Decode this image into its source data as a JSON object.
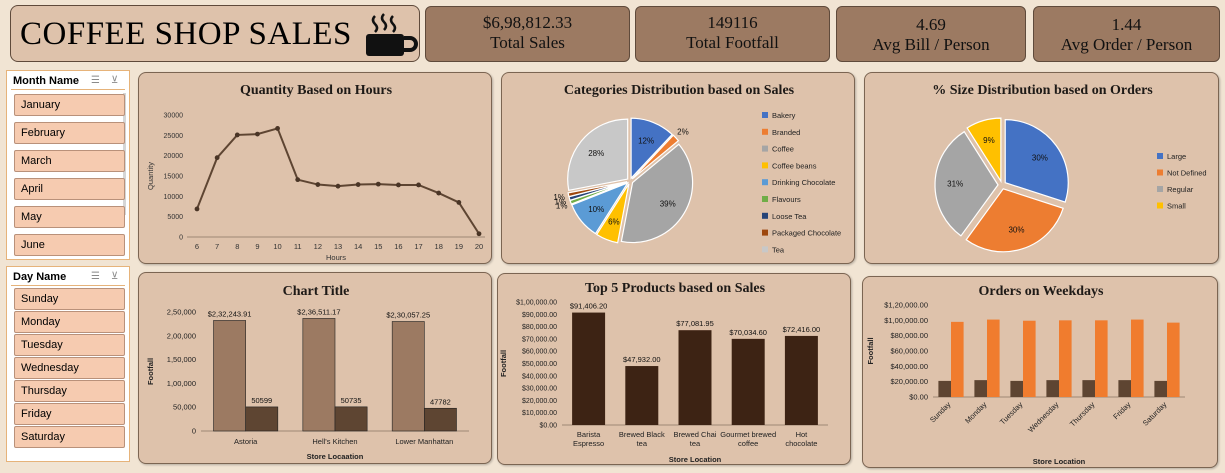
{
  "header": {
    "title": "COFFEE SHOP SALES",
    "icon": "coffee-cup-icon"
  },
  "kpis": [
    {
      "value": "$6,98,812.33",
      "label": "Total Sales"
    },
    {
      "value": "149116",
      "label": "Total Footfall"
    },
    {
      "value": "4.69",
      "label": "Avg Bill / Person"
    },
    {
      "value": "1.44",
      "label": "Avg Order / Person"
    }
  ],
  "slicers": {
    "month": {
      "title": "Month Name",
      "items": [
        "January",
        "February",
        "March",
        "April",
        "May",
        "June"
      ]
    },
    "day": {
      "title": "Day Name",
      "items": [
        "Sunday",
        "Monday",
        "Tuesday",
        "Wednesday",
        "Thursday",
        "Friday",
        "Saturday"
      ]
    }
  },
  "colors": {
    "accent_brown": "#9c7a62",
    "panel": "#dec2ab",
    "dark_brown": "#3d2314",
    "orange": "#f07c2e"
  },
  "chart_data": [
    {
      "type": "line",
      "title": "Quantity Based on Hours",
      "xlabel": "Hours",
      "ylabel": "Quantity",
      "x": [
        6,
        7,
        8,
        9,
        10,
        11,
        12,
        13,
        14,
        15,
        16,
        17,
        18,
        19,
        20
      ],
      "values": [
        6900,
        19500,
        25100,
        25300,
        26700,
        14100,
        12900,
        12500,
        12900,
        13000,
        12800,
        12800,
        10800,
        8500,
        800
      ],
      "ylim": [
        0,
        30000
      ],
      "yticks": [
        "0",
        "5000",
        "10000",
        "15000",
        "20000",
        "25000",
        "30000"
      ]
    },
    {
      "type": "pie",
      "title": "Categories Distribution based on Sales",
      "labels": [
        "Bakery",
        "Branded",
        "Coffee",
        "Coffee beans",
        "Drinking Chocolate",
        "Flavours",
        "Loose Tea",
        "Packaged Chocolate",
        "Tea"
      ],
      "values": [
        12,
        2,
        39,
        6,
        10,
        1,
        1,
        1,
        28
      ],
      "data_labels": [
        "12%",
        "2%",
        "39%",
        "6%",
        "10%",
        "1%",
        "1%",
        "1%",
        "28%"
      ],
      "colors": [
        "#4472c4",
        "#ed7d31",
        "#a5a5a5",
        "#ffc000",
        "#5b9bd5",
        "#70ad47",
        "#264478",
        "#9e480e",
        "#c8c8c8"
      ],
      "legend": "right"
    },
    {
      "type": "pie",
      "title": "% Size Distribution based on Orders",
      "labels": [
        "Large",
        "Not Defined",
        "Regular",
        "Small"
      ],
      "values": [
        30,
        30,
        31,
        9
      ],
      "data_labels": [
        "30%",
        "30%",
        "31%",
        "9%"
      ],
      "colors": [
        "#4472c4",
        "#ed7d31",
        "#a5a5a5",
        "#ffc000"
      ],
      "legend": "right"
    },
    {
      "type": "bar",
      "title": "Chart Title",
      "xlabel": "Store Locaation",
      "ylabel": "Footfall",
      "categories": [
        "Astoria",
        "Hell's Kitchen",
        "Lower Manhattan"
      ],
      "series": [
        {
          "values": [
            232243.91,
            236511.17,
            230057.25
          ],
          "labels": [
            "$2,32,243.91",
            "$2,36,511.17",
            "$2,30,057.25"
          ],
          "color": "#9c7a62"
        },
        {
          "values": [
            50599,
            50735,
            47782
          ],
          "labels": [
            "50599",
            "50735",
            "47782"
          ],
          "color": "#5e4532"
        }
      ],
      "ylim": [
        0,
        250000
      ],
      "yticks": [
        "0",
        "50,000",
        "1,00,000",
        "1,50,000",
        "2,00,000",
        "2,50,000"
      ]
    },
    {
      "type": "bar",
      "title": "Top 5 Products based on Sales",
      "xlabel": "Store Location",
      "ylabel": "Footfall",
      "categories": [
        "Barista Espresso",
        "Brewed Black tea",
        "Brewed Chai tea",
        "Gourmet brewed coffee",
        "Hot chocolate"
      ],
      "values": [
        91406.2,
        47932.0,
        77081.95,
        70034.6,
        72416.0
      ],
      "data_labels": [
        "$91,406.20",
        "$47,932.00",
        "$77,081.95",
        "$70,034.60",
        "$72,416.00"
      ],
      "ylim": [
        0,
        100000
      ],
      "yticks": [
        "$0.00",
        "$10,000.00",
        "$20,000.00",
        "$30,000.00",
        "$40,000.00",
        "$50,000.00",
        "$60,000.00",
        "$70,000.00",
        "$80,000.00",
        "$90,000.00",
        "$1,00,000.00"
      ]
    },
    {
      "type": "bar",
      "title": "Orders on Weekdays",
      "xlabel": "Store Location",
      "ylabel": "Footfall",
      "categories": [
        "Sunday",
        "Monday",
        "Tuesday",
        "Wednesday",
        "Thursday",
        "Friday",
        "Saturday"
      ],
      "series": [
        {
          "values": [
            21000,
            22000,
            21000,
            22000,
            22000,
            22000,
            21000
          ],
          "color": "#5e4532"
        },
        {
          "values": [
            98000,
            101000,
            99500,
            100000,
            100000,
            101000,
            97000
          ],
          "color": "#f07c2e"
        }
      ],
      "ylim": [
        0,
        120000
      ],
      "yticks": [
        "$0.00",
        "$20,000.00",
        "$40,000.00",
        "$60,000.00",
        "$80,000.00",
        "$1,00,000.00",
        "$1,20,000.00"
      ]
    }
  ]
}
